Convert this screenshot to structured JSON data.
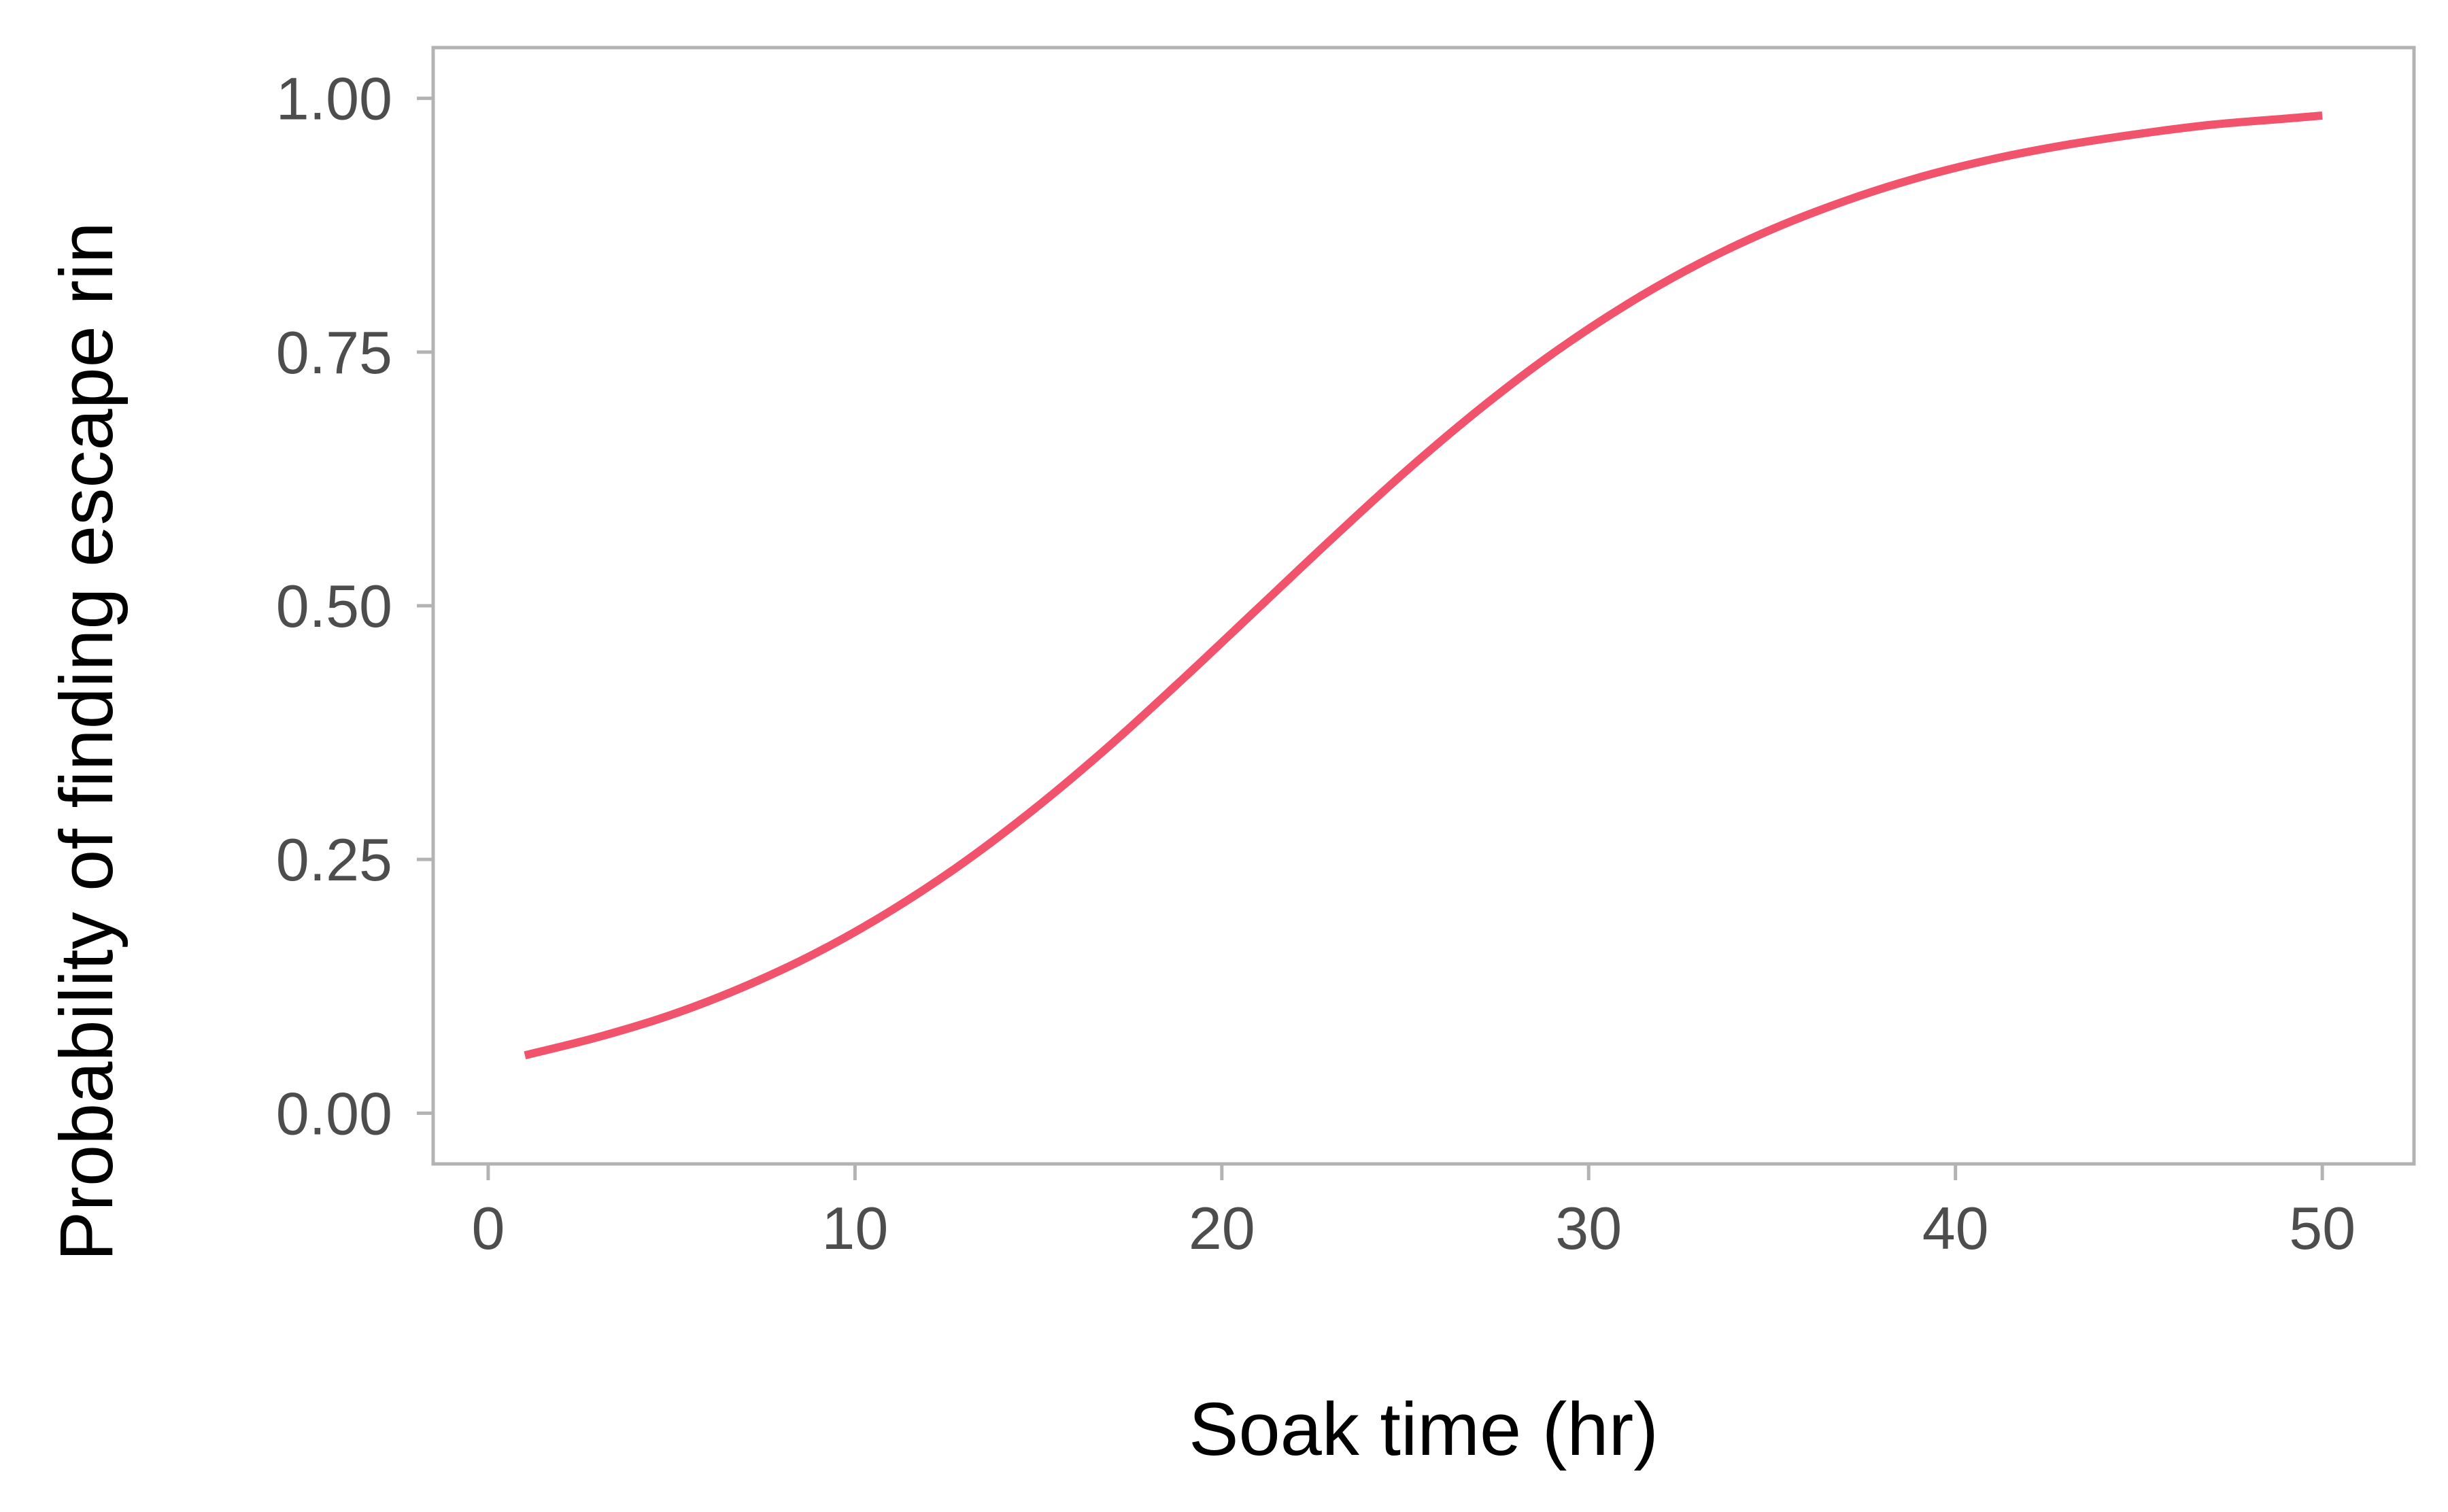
{
  "chart_data": {
    "type": "line",
    "title": "",
    "xlabel": "Soak time (hr)",
    "ylabel": "Probability of finding escape rin",
    "xlim": [
      -1.5,
      52.5
    ],
    "ylim": [
      -0.05,
      1.05
    ],
    "x_ticks": [
      0,
      10,
      20,
      30,
      40,
      50
    ],
    "x_tick_labels": [
      "0",
      "10",
      "20",
      "30",
      "40",
      "50"
    ],
    "y_ticks": [
      0,
      0.25,
      0.5,
      0.75,
      1.0
    ],
    "y_tick_labels": [
      "0.00",
      "0.25",
      "0.50",
      "0.75",
      "1.00"
    ],
    "grid": false,
    "line_color": "#f0536b",
    "frame_color": "#b3b3b3",
    "series": [
      {
        "x": [
          1,
          3,
          5,
          7,
          9,
          11,
          13,
          15,
          17,
          19,
          21,
          23,
          25,
          27,
          29,
          31,
          33,
          35,
          37,
          39,
          41,
          43,
          45,
          47,
          49,
          50
        ],
        "values": [
          0.057,
          0.075,
          0.097,
          0.125,
          0.159,
          0.2,
          0.248,
          0.303,
          0.364,
          0.43,
          0.498,
          0.566,
          0.632,
          0.693,
          0.748,
          0.796,
          0.837,
          0.871,
          0.899,
          0.922,
          0.94,
          0.954,
          0.965,
          0.974,
          0.98,
          0.983
        ]
      }
    ]
  }
}
